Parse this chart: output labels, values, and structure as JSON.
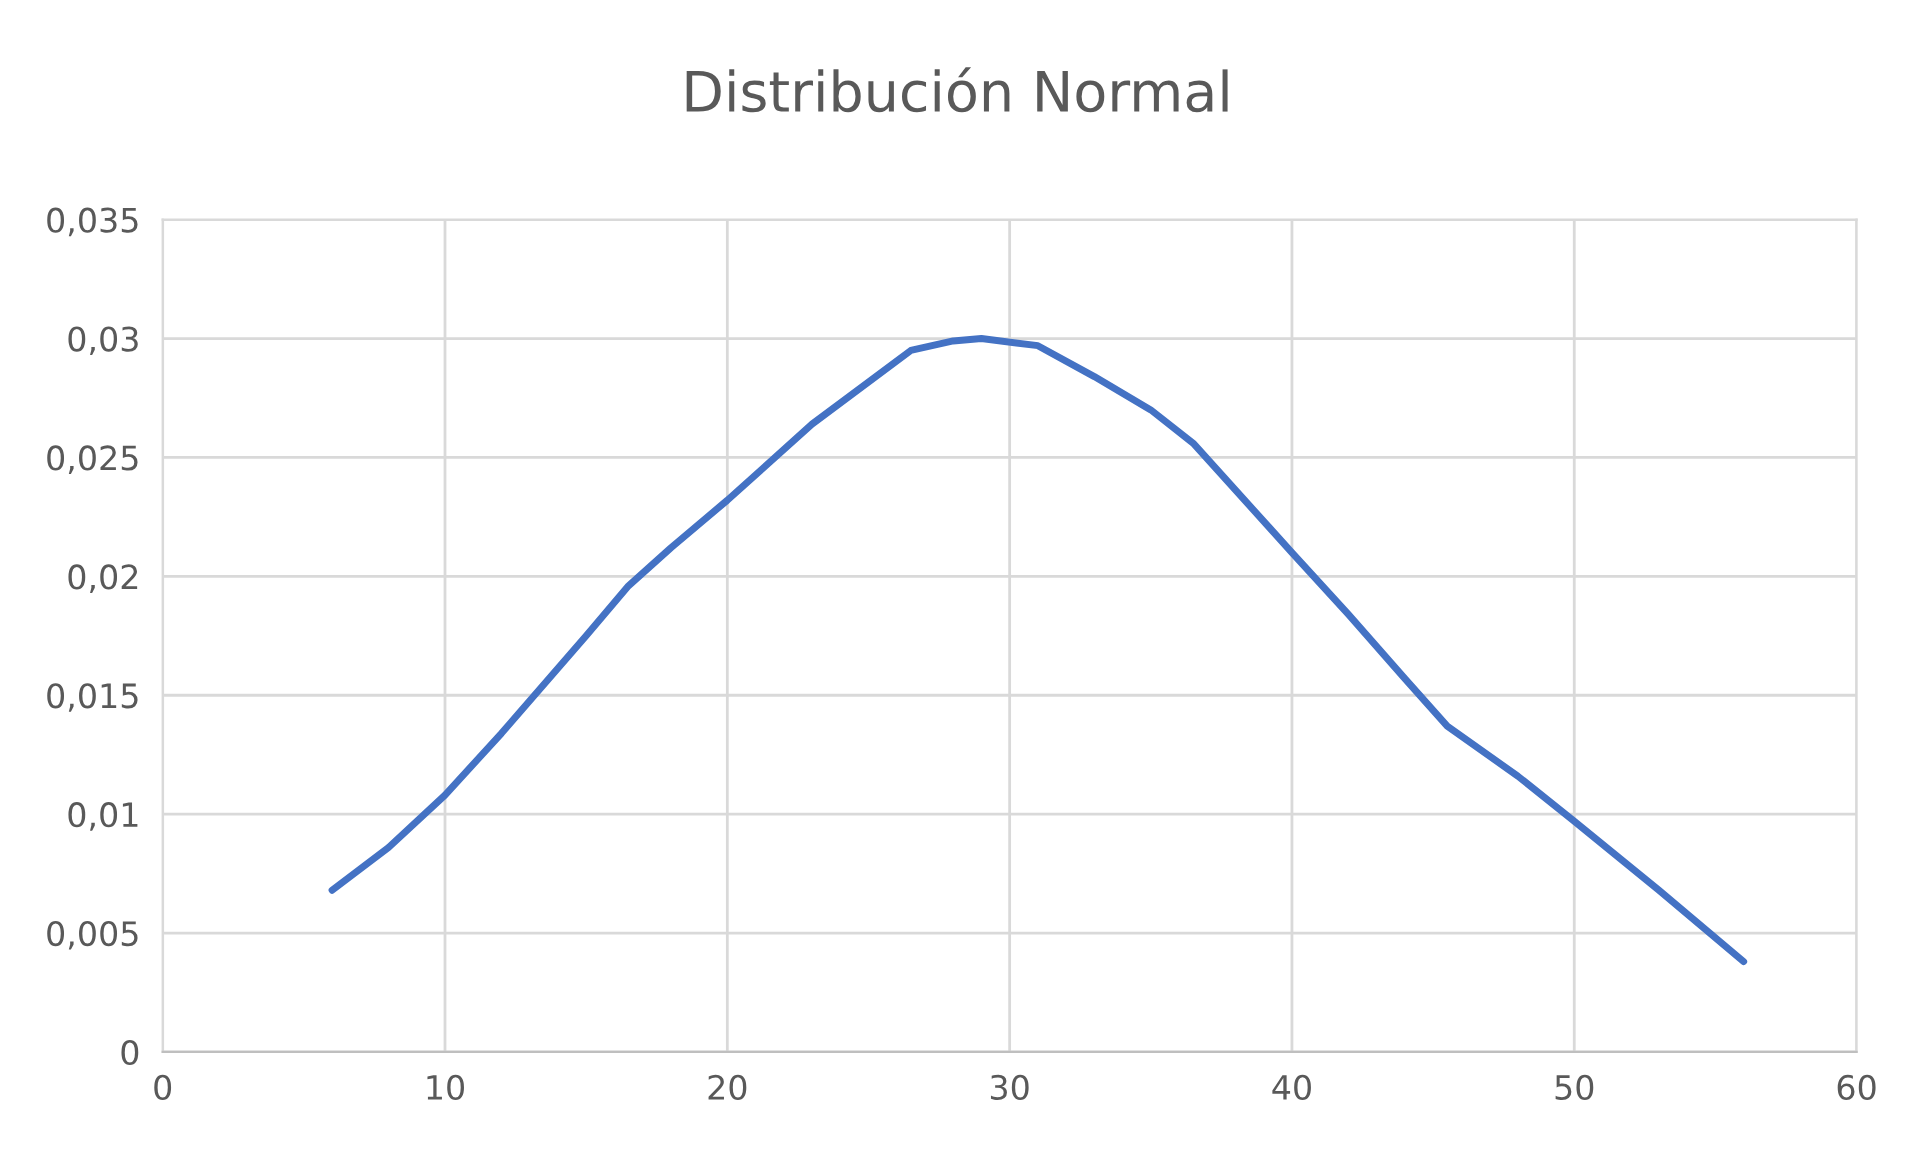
{
  "chart_data": {
    "type": "line",
    "title": "Distribución Normal",
    "x": [
      6,
      8,
      10,
      12,
      15,
      16.5,
      18,
      20,
      23,
      26.5,
      28,
      29,
      31,
      33,
      35,
      36.5,
      40,
      42,
      44,
      45.5,
      48,
      50,
      53,
      56
    ],
    "series": [
      {
        "color": "#4472c4",
        "values": [
          0.0068,
          0.0086,
          0.0108,
          0.0134,
          0.0175,
          0.0196,
          0.0212,
          0.0232,
          0.0264,
          0.0295,
          0.0299,
          0.03,
          0.0297,
          0.0284,
          0.027,
          0.0256,
          0.021,
          0.0184,
          0.0157,
          0.0137,
          0.0116,
          0.0097,
          0.0068,
          0.0038
        ]
      }
    ],
    "xlim": [
      0,
      60
    ],
    "xticks": [
      0,
      10,
      20,
      30,
      40,
      50,
      60
    ],
    "ylim": [
      0,
      0.035
    ],
    "yticks": [
      {
        "value": 0,
        "label": "0"
      },
      {
        "value": 0.005,
        "label": "0,005"
      },
      {
        "value": 0.01,
        "label": "0,01"
      },
      {
        "value": 0.015,
        "label": "0,015"
      },
      {
        "value": 0.02,
        "label": "0,02"
      },
      {
        "value": 0.025,
        "label": "0,025"
      },
      {
        "value": 0.03,
        "label": "0,03"
      },
      {
        "value": 0.035,
        "label": "0,035"
      }
    ],
    "grid": true,
    "marker": "none",
    "line_style": "solid"
  }
}
